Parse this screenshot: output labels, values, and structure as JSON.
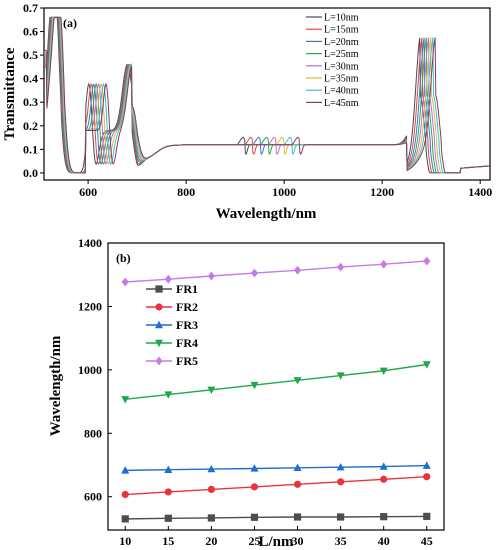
{
  "chart_data": [
    {
      "type": "line",
      "panel_label": "(a)",
      "xlabel": "Wavelength/nm",
      "ylabel": "Transmittance",
      "xlim": [
        510,
        1420
      ],
      "ylim": [
        -0.03,
        0.7
      ],
      "xticks": [
        600,
        800,
        1000,
        1200,
        1400
      ],
      "yticks": [
        0.0,
        0.1,
        0.2,
        0.3,
        0.4,
        0.5,
        0.6,
        0.7
      ],
      "legend_position": "top-right",
      "grid": false,
      "series": [
        {
          "name": "L=10nm",
          "color": "#4a4a4a"
        },
        {
          "name": "L=15nm",
          "color": "#e8424a"
        },
        {
          "name": "L=20nm",
          "color": "#2f7ec2"
        },
        {
          "name": "L=25nm",
          "color": "#2aa84a"
        },
        {
          "name": "L=30nm",
          "color": "#c46ad6"
        },
        {
          "name": "L=35nm",
          "color": "#e0b93a"
        },
        {
          "name": "L=40nm",
          "color": "#2fc3d4"
        },
        {
          "name": "L=45nm",
          "color": "#8a3a5a"
        }
      ]
    },
    {
      "type": "line",
      "panel_label": "(b)",
      "xlabel": "L/nm",
      "ylabel": "Wavelength/nm",
      "xlim": [
        8,
        47
      ],
      "ylim": [
        495,
        1400
      ],
      "xticks": [
        10,
        15,
        20,
        25,
        30,
        35,
        40,
        45
      ],
      "yticks": [
        600,
        800,
        1000,
        1200,
        1400
      ],
      "legend_position": "top-left",
      "grid": false,
      "x": [
        10,
        15,
        20,
        25,
        30,
        35,
        40,
        45
      ],
      "series": [
        {
          "name": "FR1",
          "color": "#4d4d4d",
          "marker": "square",
          "values": [
            530,
            532,
            533,
            535,
            536,
            536,
            537,
            538
          ]
        },
        {
          "name": "FR2",
          "color": "#e8343c",
          "marker": "circle",
          "values": [
            607,
            615,
            623,
            631,
            639,
            647,
            655,
            663
          ]
        },
        {
          "name": "FR3",
          "color": "#1e6fd0",
          "marker": "triangle-up",
          "values": [
            683,
            685,
            687,
            689,
            691,
            693,
            695,
            698
          ]
        },
        {
          "name": "FR4",
          "color": "#1fa84a",
          "marker": "triangle-down",
          "values": [
            907,
            922,
            937,
            952,
            967,
            982,
            997,
            1017
          ]
        },
        {
          "name": "FR5",
          "color": "#c77ae6",
          "marker": "diamond",
          "values": [
            1277,
            1286,
            1296,
            1305,
            1314,
            1324,
            1333,
            1343
          ]
        }
      ]
    }
  ]
}
